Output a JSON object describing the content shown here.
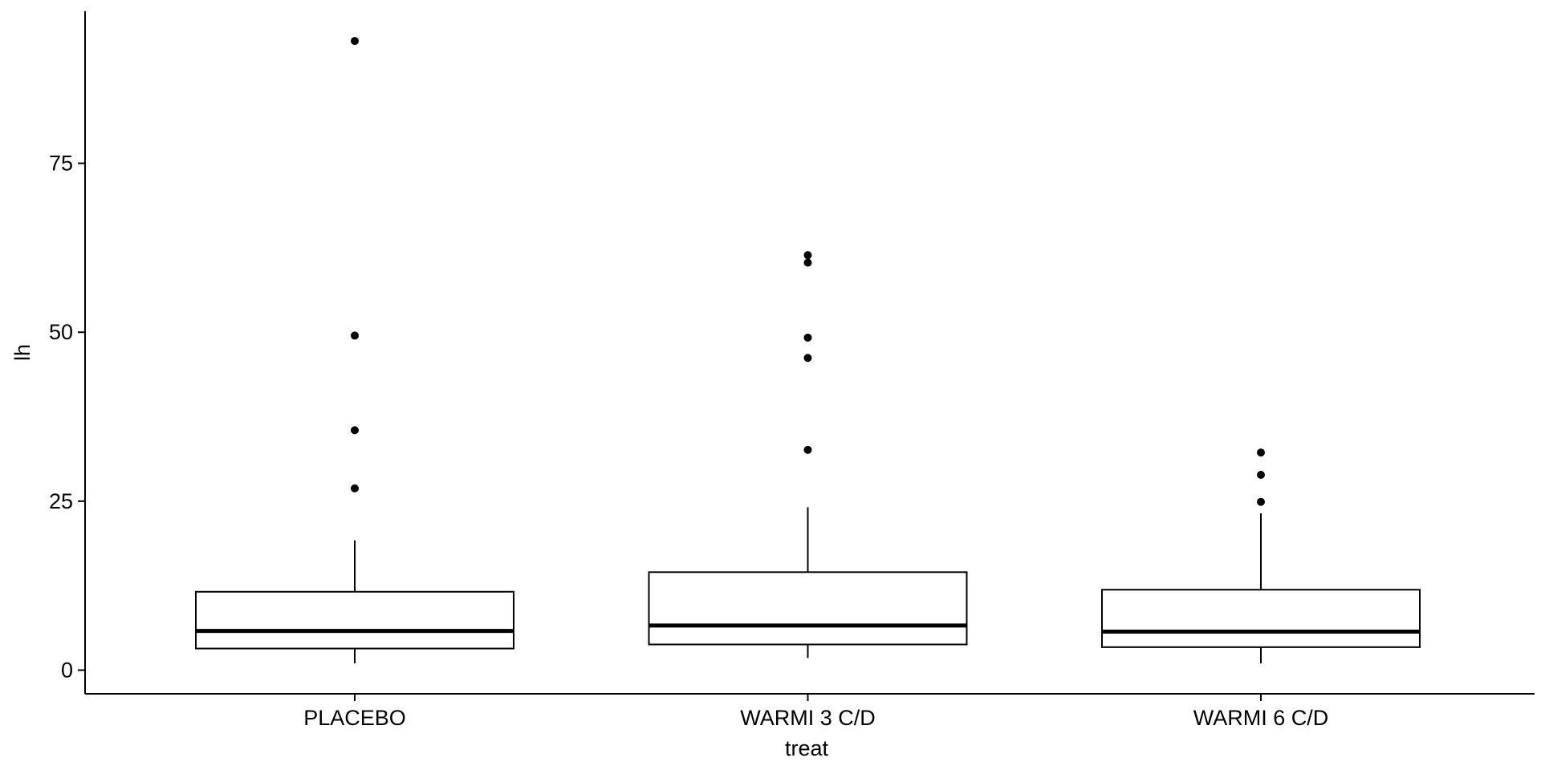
{
  "chart_data": {
    "type": "box",
    "xlabel": "treat",
    "ylabel": "lh",
    "ylim": [
      -3.5,
      97.5
    ],
    "y_ticks": [
      0,
      25,
      50,
      75
    ],
    "y_tick_labels": [
      "0",
      "25",
      "50",
      "75"
    ],
    "grid": false,
    "legend": "none",
    "colors": {
      "line": "#000000",
      "box_fill": "#ffffff",
      "background": "#ffffff"
    },
    "categories": [
      "PLACEBO",
      "WARMI 3 C/D",
      "WARMI 6 C/D"
    ],
    "boxes": [
      {
        "category": "PLACEBO",
        "whisker_low": 1.0,
        "q1": 3.2,
        "median": 5.8,
        "q3": 11.6,
        "whisker_high": 19.2,
        "outliers": [
          26.9,
          35.5,
          49.5,
          93.1
        ]
      },
      {
        "category": "WARMI 3 C/D",
        "whisker_low": 1.8,
        "q1": 3.8,
        "median": 6.6,
        "q3": 14.5,
        "whisker_high": 24.1,
        "outliers": [
          32.6,
          46.2,
          49.2,
          60.3,
          61.4
        ]
      },
      {
        "category": "WARMI 6 C/D",
        "whisker_low": 1.0,
        "q1": 3.4,
        "median": 5.7,
        "q3": 11.9,
        "whisker_high": 23.2,
        "outliers": [
          24.9,
          28.9,
          32.2
        ]
      }
    ]
  }
}
